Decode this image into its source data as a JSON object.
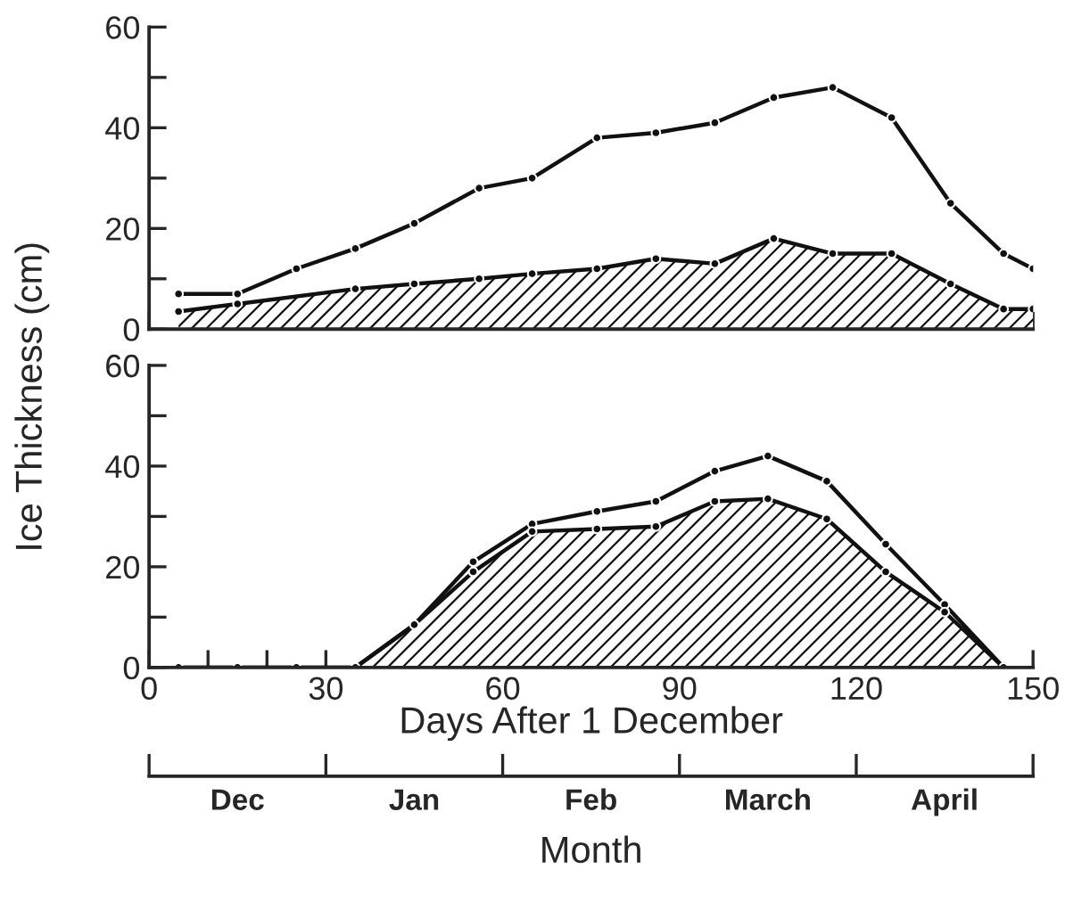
{
  "chart_data": [
    {
      "type": "line",
      "ylabel": "Ice Thickness (cm)",
      "tick_labels": "y",
      "marker": "circle",
      "line_style": "solid",
      "grid": false,
      "legend": false,
      "xlim": [
        0,
        150
      ],
      "ylim": [
        0,
        60
      ],
      "xticks": [
        {
          "value": 0,
          "label": null
        },
        {
          "value": 10,
          "label": null
        },
        {
          "value": 20,
          "label": null
        },
        {
          "value": 30,
          "label": null
        },
        {
          "value": 40,
          "label": null
        },
        {
          "value": 50,
          "label": null
        },
        {
          "value": 60,
          "label": null
        },
        {
          "value": 70,
          "label": null
        },
        {
          "value": 80,
          "label": null
        },
        {
          "value": 90,
          "label": null
        },
        {
          "value": 100,
          "label": null
        },
        {
          "value": 110,
          "label": null
        },
        {
          "value": 120,
          "label": null
        },
        {
          "value": 130,
          "label": null
        },
        {
          "value": 140,
          "label": null
        },
        {
          "value": 150,
          "label": null
        }
      ],
      "yticks": [
        0,
        {
          "value": 10,
          "label": null
        },
        20,
        {
          "value": 30,
          "label": null
        },
        40,
        {
          "value": 50,
          "label": null
        },
        60
      ],
      "series": [
        {
          "color": "#111111",
          "x": [
            5,
            15,
            25,
            35,
            45,
            56,
            65,
            76,
            86,
            96,
            106,
            116,
            126,
            136,
            145,
            150
          ],
          "values": [
            7,
            7,
            12,
            16,
            21,
            28,
            30,
            38,
            39,
            41,
            46,
            48,
            42,
            25,
            15,
            12
          ]
        },
        {
          "type": "area",
          "color": "#111111",
          "x": [
            5,
            15,
            35,
            45,
            56,
            65,
            76,
            86,
            96,
            106,
            116,
            126,
            136,
            145,
            150
          ],
          "values": [
            3.5,
            5,
            8,
            9,
            10,
            11,
            12,
            14,
            13,
            18,
            15,
            15,
            9,
            4,
            4
          ]
        }
      ]
    },
    {
      "type": "line",
      "xlabel": "Days After 1 December",
      "x2label": "Month",
      "marker": "circle",
      "line_style": "solid",
      "grid": false,
      "legend": false,
      "xlim": [
        0,
        150
      ],
      "ylim": [
        0,
        60
      ],
      "xticks": [
        0,
        {
          "value": 10,
          "label": null
        },
        {
          "value": 20,
          "label": null
        },
        30,
        {
          "value": 40,
          "label": null
        },
        {
          "value": 50,
          "label": null
        },
        60,
        {
          "value": 70,
          "label": null
        },
        {
          "value": 80,
          "label": null
        },
        90,
        {
          "value": 100,
          "label": null
        },
        {
          "value": 110,
          "label": null
        },
        120,
        {
          "value": 130,
          "label": null
        },
        {
          "value": 140,
          "label": null
        },
        150
      ],
      "yticks": [
        0,
        {
          "value": 10,
          "label": null
        },
        20,
        {
          "value": 30,
          "label": null
        },
        40,
        {
          "value": 50,
          "label": null
        },
        60
      ],
      "annotations": [
        "Dec",
        "Jan",
        "Feb",
        "March",
        "April"
      ],
      "series": [
        {
          "color": "#111111",
          "x": [
            5,
            15,
            25,
            35,
            45,
            55,
            65,
            76,
            86,
            96,
            105,
            115,
            125,
            135,
            145
          ],
          "values": [
            0,
            0,
            0,
            0,
            8.5,
            21,
            28.5,
            31,
            33,
            39,
            42,
            37,
            24.5,
            12.5,
            0
          ]
        },
        {
          "type": "area",
          "color": "#111111",
          "x": [
            5,
            15,
            25,
            35,
            45,
            55,
            65,
            76,
            86,
            96,
            105,
            115,
            125,
            135,
            145
          ],
          "values": [
            0,
            0,
            0,
            0,
            8.5,
            19,
            27,
            27.5,
            28,
            33,
            33.5,
            29.5,
            19,
            11,
            0
          ]
        }
      ]
    }
  ]
}
